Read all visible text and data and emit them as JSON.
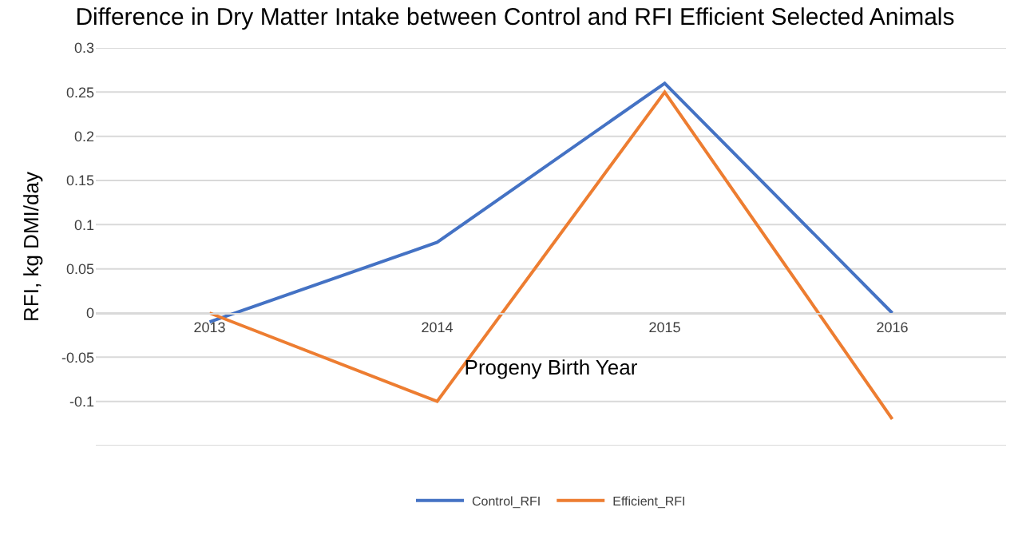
{
  "chart_data": {
    "type": "line",
    "title": "Difference in Dry Matter Intake between Control and RFI Efficient Selected Animals",
    "xlabel": "Progeny Birth Year",
    "ylabel": "RFI, kg DMI/day",
    "categories": [
      "2013",
      "2014",
      "2015",
      "2016"
    ],
    "series": [
      {
        "name": "Control_RFI",
        "color": "#4472c4",
        "values": [
          -0.01,
          0.08,
          0.26,
          0.0
        ]
      },
      {
        "name": "Efficient_RFI",
        "color": "#ed7d31",
        "values": [
          0.0,
          -0.1,
          0.25,
          -0.12
        ]
      }
    ],
    "ylim": [
      -0.15,
      0.3
    ],
    "yticks": [
      {
        "value": -0.15,
        "label": null
      },
      -0.1,
      -0.05,
      0,
      0.05,
      0.1,
      0.15,
      0.2,
      0.25,
      0.3
    ],
    "grid": "y",
    "legend": "bottom",
    "marker": "none",
    "line_style": "solid"
  }
}
